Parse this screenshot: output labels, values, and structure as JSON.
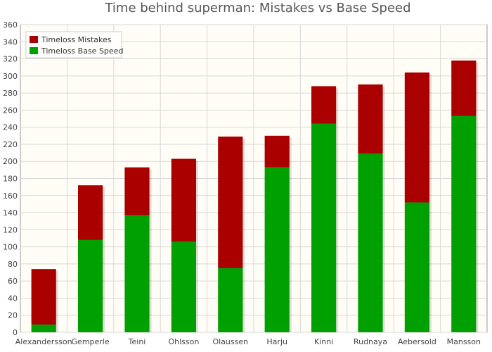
{
  "chart_data": {
    "type": "bar",
    "stacked": true,
    "title": "Time behind superman: Mistakes vs Base Speed",
    "xlabel": "",
    "ylabel": "",
    "ylim": [
      0,
      360
    ],
    "ytick_step": 20,
    "grid": true,
    "legend_position": "top-left",
    "categories": [
      "Alexandersson",
      "Gemperle",
      "Teini",
      "Ohlsson",
      "Olaussen",
      "Harju",
      "Kinni",
      "Rudnaya",
      "Aebersold",
      "Mansson"
    ],
    "series": [
      {
        "name": "Timeloss Base Speed",
        "color": "#00a000",
        "values": [
          9,
          108,
          137,
          106,
          75,
          193,
          244,
          209,
          152,
          253
        ]
      },
      {
        "name": "Timeloss Mistakes",
        "color": "#aa0000",
        "values": [
          65,
          64,
          56,
          97,
          154,
          37,
          44,
          81,
          152,
          65
        ]
      }
    ],
    "legend_order": [
      "Timeloss Mistakes",
      "Timeloss Base Speed"
    ]
  }
}
